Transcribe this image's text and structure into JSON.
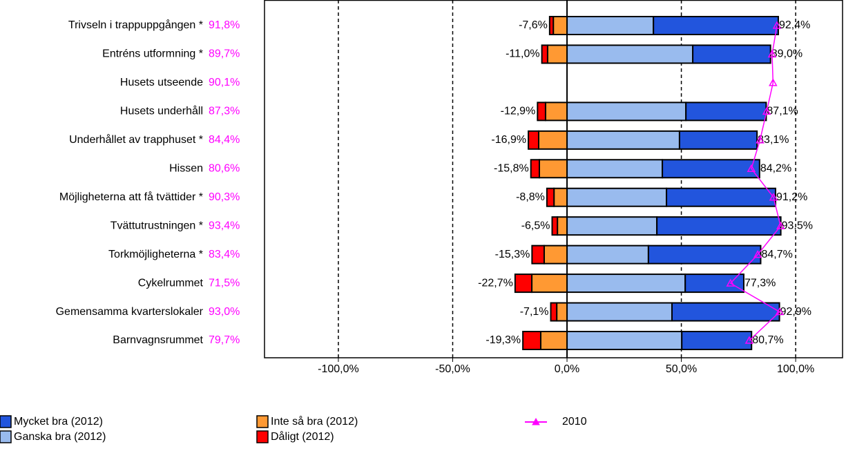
{
  "chart_data": {
    "type": "diverging_bar",
    "categories": [
      "Trivseln i trappuppgången *",
      "Entréns utformning *",
      "Husets utseende",
      "Husets underhåll",
      "Underhållet av trapphuset *",
      "Hissen",
      "Möjligheterna att få tvättider *",
      "Tvättutrustningen *",
      "Torkmöjligheterna *",
      "Cykelrummet",
      "Gemensamma kvarterslokaler",
      "Barnvagnsrummet"
    ],
    "series": [
      {
        "name": "Mycket bra (2012)",
        "color": "#2255dd",
        "side": "positive",
        "values": [
          54.6,
          34.0,
          null,
          35.1,
          33.9,
          42.5,
          47.7,
          54.2,
          49.1,
          25.6,
          47.0,
          30.5
        ]
      },
      {
        "name": "Ganska bra (2012)",
        "color": "#99bbee",
        "side": "positive",
        "values": [
          37.8,
          55.0,
          null,
          52.0,
          49.2,
          41.7,
          43.5,
          39.3,
          35.6,
          51.7,
          45.9,
          50.2
        ]
      },
      {
        "name": "Inte så bra (2012)",
        "color": "#ff9933",
        "side": "negative",
        "values": [
          -6.0,
          -8.5,
          null,
          -9.4,
          -12.4,
          -12.1,
          -5.7,
          -4.2,
          -10.0,
          -15.4,
          -4.5,
          -11.5
        ]
      },
      {
        "name": "Dåligt (2012)",
        "color": "#ff0000",
        "side": "negative",
        "values": [
          -1.6,
          -2.5,
          null,
          -3.5,
          -4.5,
          -3.7,
          -3.1,
          -2.3,
          -5.3,
          -7.3,
          -2.6,
          -7.8
        ]
      },
      {
        "name": "2010",
        "color": "#ff00ff",
        "type": "line",
        "values": [
          91.8,
          89.7,
          90.1,
          87.3,
          84.4,
          80.6,
          90.3,
          93.4,
          83.4,
          71.5,
          93.0,
          79.7
        ],
        "value_labels": [
          "91,8%",
          "89,7%",
          "90,1%",
          "87,3%",
          "84,4%",
          "80,6%",
          "90,3%",
          "93,4%",
          "83,4%",
          "71,5%",
          "93,0%",
          "79,7%"
        ]
      }
    ],
    "negative_totals": [
      -7.6,
      -11.0,
      null,
      -12.9,
      -16.9,
      -15.8,
      -8.8,
      -6.5,
      -15.3,
      -22.7,
      -7.1,
      -19.3
    ],
    "negative_total_labels": [
      "-7,6%",
      "-11,0%",
      null,
      "-12,9%",
      "-16,9%",
      "-15,8%",
      "-8,8%",
      "-6,5%",
      "-15,3%",
      "-22,7%",
      "-7,1%",
      "-19,3%"
    ],
    "positive_totals": [
      92.4,
      89.0,
      null,
      87.1,
      83.1,
      84.2,
      91.2,
      93.5,
      84.7,
      77.3,
      92.9,
      80.7
    ],
    "positive_total_labels": [
      "92,4%",
      "89,0%",
      null,
      "87,1%",
      "83,1%",
      "84,2%",
      "91,2%",
      "93,5%",
      "84,7%",
      "77,3%",
      "92,9%",
      "80,7%"
    ],
    "xlim": [
      -132.3,
      120.5
    ],
    "xticks": [
      {
        "value": -100,
        "label": "-100,0%"
      },
      {
        "value": -50,
        "label": "-50,0%"
      },
      {
        "value": 0,
        "label": "0,0%"
      },
      {
        "value": 50,
        "label": "50,0%"
      },
      {
        "value": 100,
        "label": "100,0%"
      }
    ],
    "grid": true
  }
}
